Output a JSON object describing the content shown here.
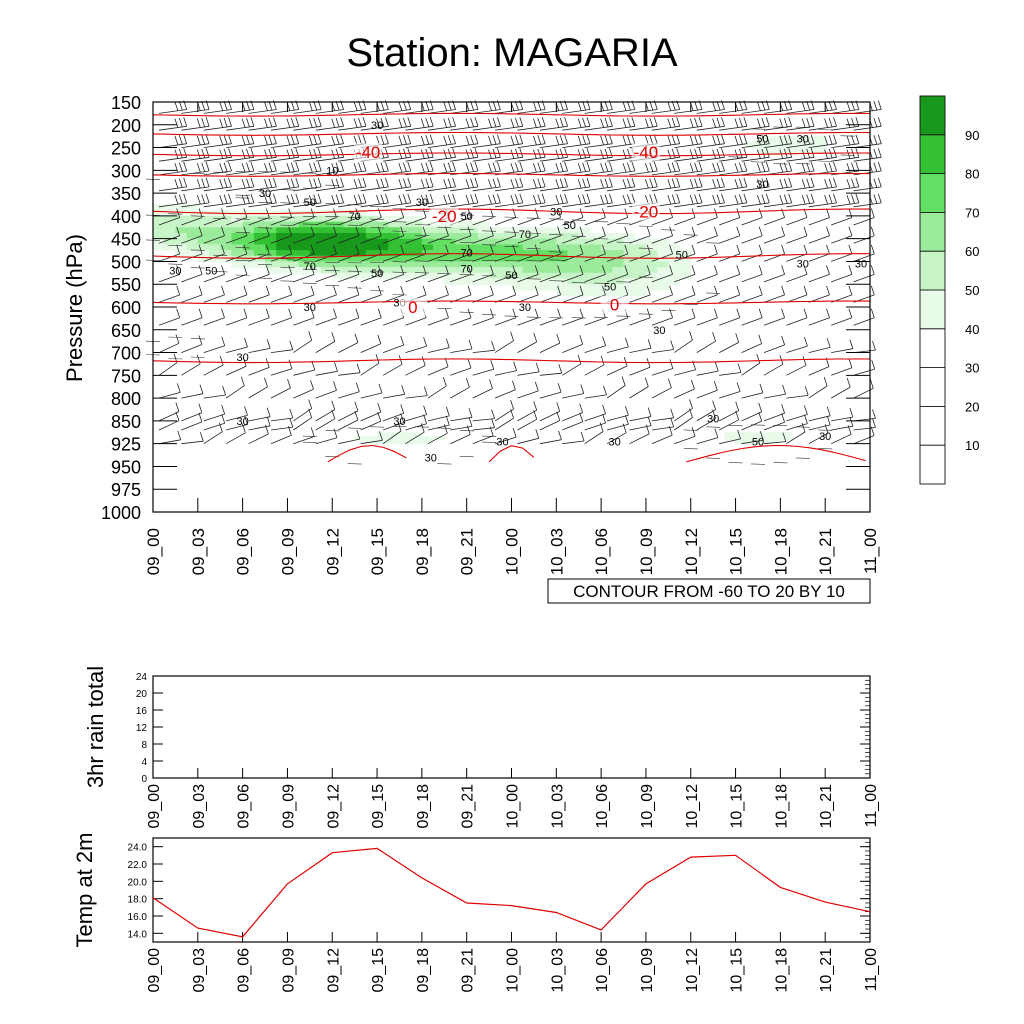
{
  "chart_data": [
    {
      "type": "heatmap",
      "title": "Station: MAGARIA",
      "ylabel": "Pressure (hPa)",
      "xlabel": "",
      "x_ticks": [
        "09_00",
        "09_03",
        "09_06",
        "09_09",
        "09_12",
        "09_15",
        "09_18",
        "09_21",
        "10_00",
        "10_03",
        "10_06",
        "10_09",
        "10_12",
        "10_15",
        "10_18",
        "10_21",
        "11_00"
      ],
      "y_ticks": [
        "150",
        "200",
        "250",
        "300",
        "350",
        "400",
        "450",
        "500",
        "550",
        "600",
        "650",
        "700",
        "750",
        "800",
        "850",
        "925",
        "950",
        "975",
        "1000"
      ],
      "colorbar_labels": [
        "10",
        "20",
        "30",
        "40",
        "50",
        "60",
        "70",
        "80",
        "90"
      ],
      "colorbar_colors": [
        "#ffffff",
        "#ffffff",
        "#ffffff",
        "#e8fbe8",
        "#c8f5c8",
        "#9ceb9c",
        "#63df63",
        "#33c033",
        "#18991c"
      ],
      "info_box": "CONTOUR FROM -60 TO 20 BY 10",
      "humidity_labels": [
        {
          "text": "30",
          "i": 5,
          "p": 200
        },
        {
          "text": "10",
          "i": 4,
          "p": 300
        },
        {
          "text": "30",
          "i": 2.5,
          "p": 350
        },
        {
          "text": "50",
          "i": 3.5,
          "p": 370
        },
        {
          "text": "70",
          "i": 4.5,
          "p": 400
        },
        {
          "text": "50",
          "i": 7,
          "p": 400
        },
        {
          "text": "30",
          "i": 9,
          "p": 390
        },
        {
          "text": "30",
          "i": 6,
          "p": 370
        },
        {
          "text": "70",
          "i": 7,
          "p": 480
        },
        {
          "text": "70",
          "i": 8.3,
          "p": 440
        },
        {
          "text": "50",
          "i": 9.3,
          "p": 420
        },
        {
          "text": "50",
          "i": 10.2,
          "p": 555
        },
        {
          "text": "50",
          "i": 1.3,
          "p": 520
        },
        {
          "text": "70",
          "i": 3.5,
          "p": 510
        },
        {
          "text": "50",
          "i": 5,
          "p": 525
        },
        {
          "text": "70",
          "i": 7,
          "p": 515
        },
        {
          "text": "50",
          "i": 8,
          "p": 530
        },
        {
          "text": "30",
          "i": 0.5,
          "p": 520
        },
        {
          "text": "30",
          "i": 3.5,
          "p": 600
        },
        {
          "text": "30",
          "i": 5.5,
          "p": 590
        },
        {
          "text": "30",
          "i": 8.3,
          "p": 600
        },
        {
          "text": "30",
          "i": 11.3,
          "p": 650
        },
        {
          "text": "50",
          "i": 11.8,
          "p": 485
        },
        {
          "text": "30",
          "i": 13.6,
          "p": 330
        },
        {
          "text": "50",
          "i": 13.6,
          "p": 230
        },
        {
          "text": "30",
          "i": 14.5,
          "p": 230
        },
        {
          "text": "30",
          "i": 14.5,
          "p": 505
        },
        {
          "text": "30",
          "i": 15.8,
          "p": 505
        },
        {
          "text": "30",
          "i": 2,
          "p": 710
        },
        {
          "text": "30",
          "i": 2,
          "p": 850
        },
        {
          "text": "30",
          "i": 5.5,
          "p": 850
        },
        {
          "text": "30",
          "i": 7.8,
          "p": 918
        },
        {
          "text": "30",
          "i": 6.2,
          "p": 940
        },
        {
          "text": "30",
          "i": 10.3,
          "p": 918
        },
        {
          "text": "30",
          "i": 12.5,
          "p": 845
        },
        {
          "text": "50",
          "i": 13.5,
          "p": 918
        },
        {
          "text": "30",
          "i": 15,
          "p": 900
        }
      ],
      "temperature_labels": [
        {
          "text": "-40",
          "i": 4.8,
          "p": 260
        },
        {
          "text": "-40",
          "i": 11,
          "p": 260
        },
        {
          "text": "-20",
          "i": 6.5,
          "p": 400
        },
        {
          "text": "-20",
          "i": 11,
          "p": 390
        },
        {
          "text": "0",
          "i": 5.8,
          "p": 600
        },
        {
          "text": "0",
          "i": 10.3,
          "p": 595
        }
      ]
    },
    {
      "type": "line",
      "ylabel": "3hr rain total",
      "x": [
        "09_00",
        "09_03",
        "09_06",
        "09_09",
        "09_12",
        "09_15",
        "09_18",
        "09_21",
        "10_00",
        "10_03",
        "10_06",
        "10_09",
        "10_12",
        "10_15",
        "10_18",
        "10_21",
        "11_00"
      ],
      "values": [
        0,
        0,
        0,
        0,
        0,
        0,
        0,
        0,
        0,
        0,
        0,
        0,
        0,
        0,
        0,
        0,
        0
      ],
      "yticks": [
        "0",
        "4",
        "8",
        "12",
        "16",
        "20",
        "24"
      ],
      "ylim": [
        0,
        24
      ]
    },
    {
      "type": "line",
      "ylabel": "Temp at 2m",
      "x": [
        "09_00",
        "09_03",
        "09_06",
        "09_09",
        "09_12",
        "09_15",
        "09_18",
        "09_21",
        "10_00",
        "10_03",
        "10_06",
        "10_09",
        "10_12",
        "10_15",
        "10_18",
        "10_21",
        "11_00"
      ],
      "values": [
        18.1,
        14.6,
        13.6,
        19.7,
        23.3,
        23.8,
        20.4,
        17.5,
        17.2,
        16.4,
        14.4,
        19.7,
        22.8,
        23.0,
        19.3,
        17.6,
        16.5
      ],
      "yticks": [
        "14.0",
        "16.0",
        "18.0",
        "20.0",
        "22.0",
        "24.0"
      ],
      "ylim": [
        13.0,
        25.0
      ],
      "color": "#e00000"
    }
  ]
}
